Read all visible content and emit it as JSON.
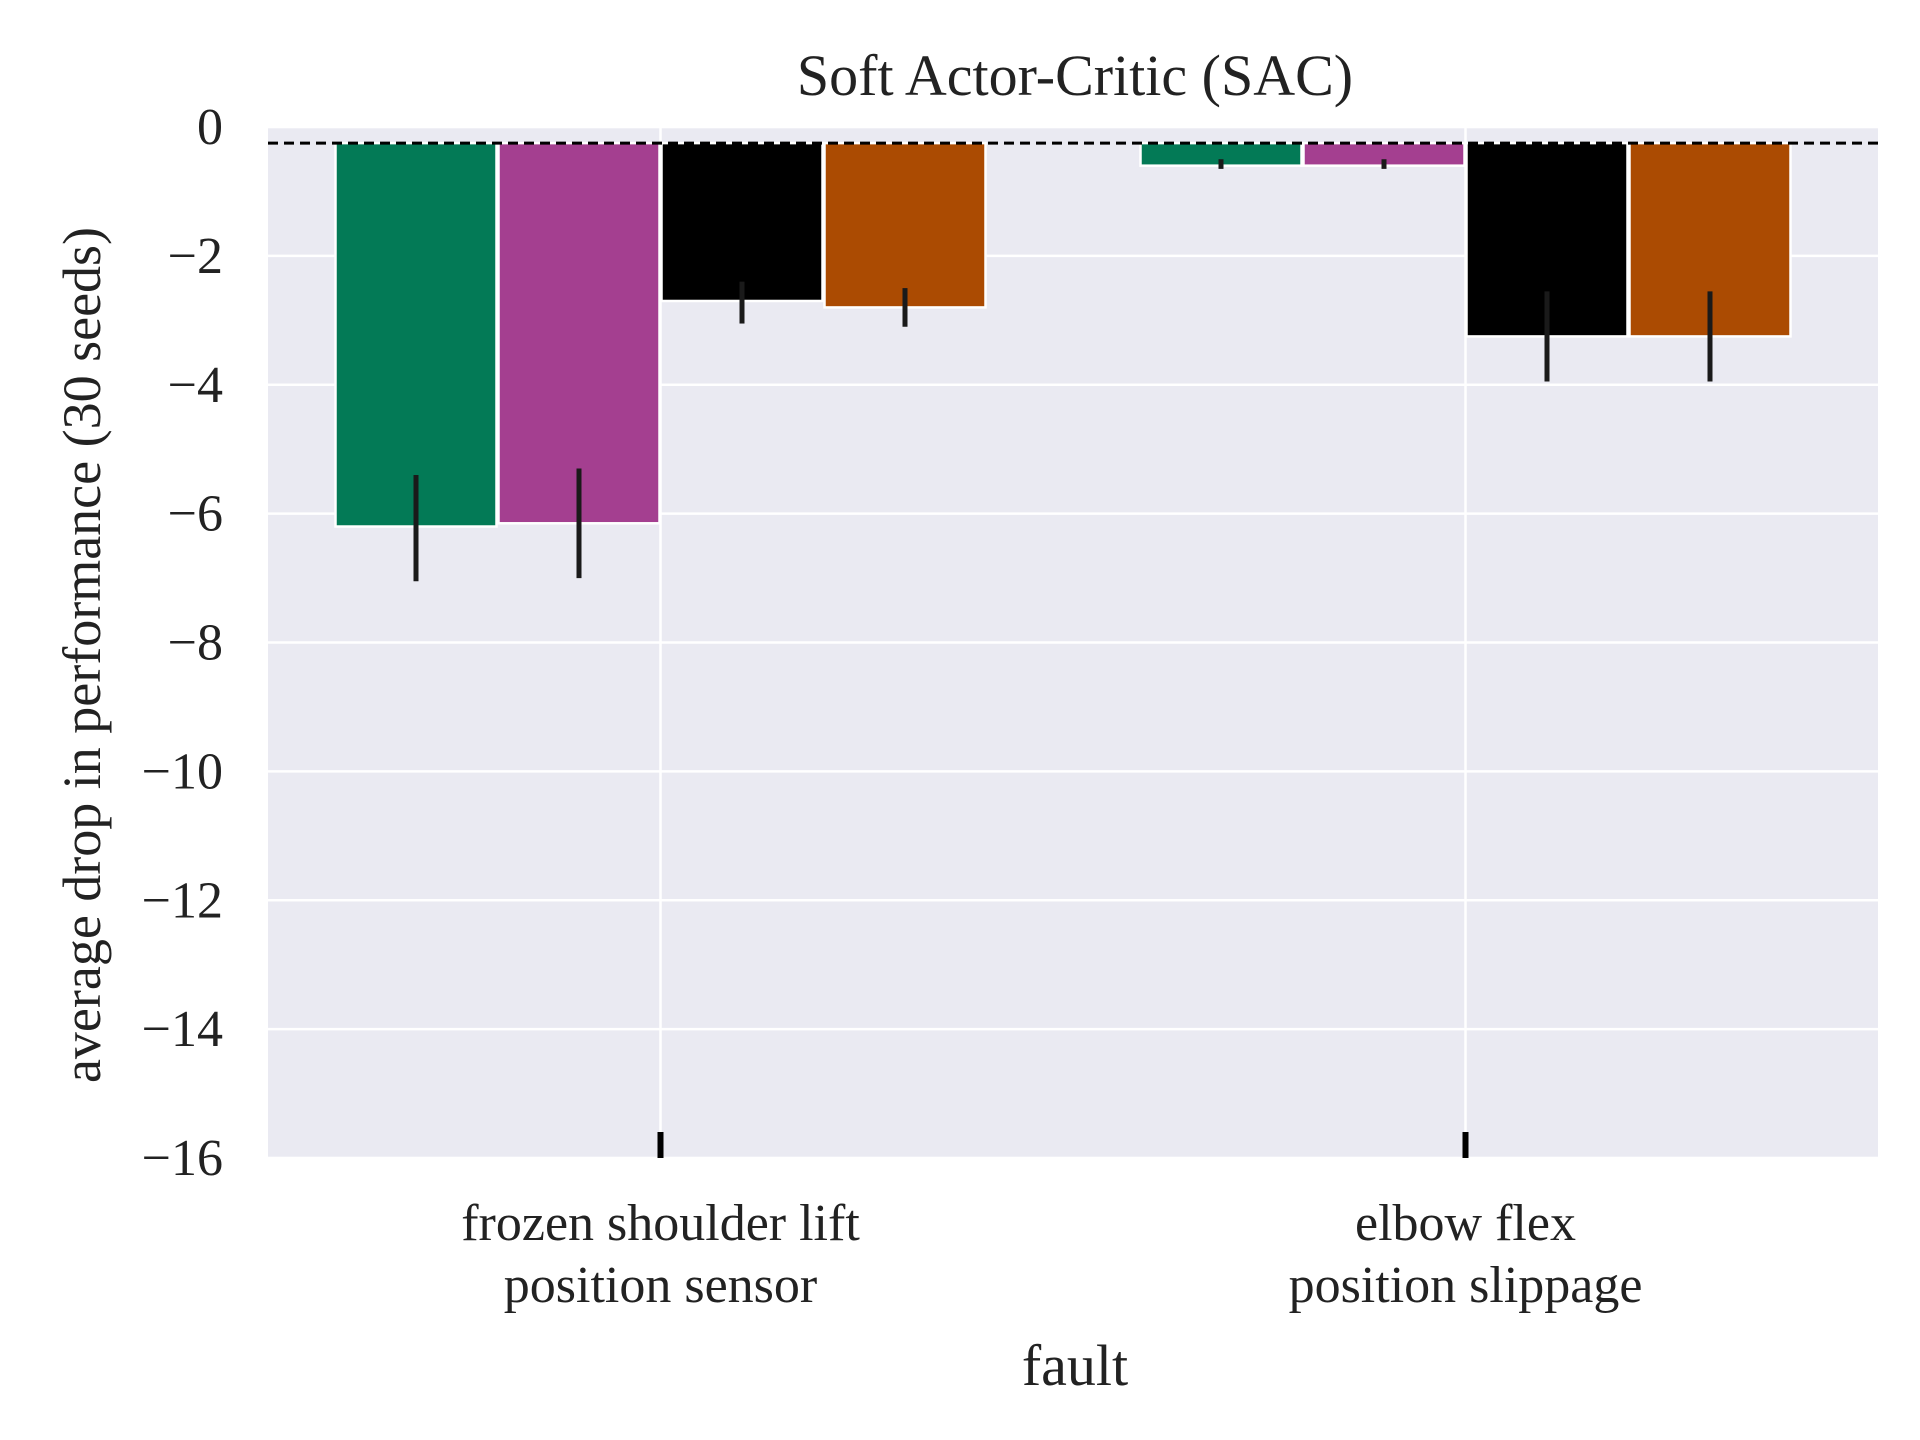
{
  "chart_data": {
    "type": "bar",
    "title": "Soft Actor-Critic (SAC)",
    "xlabel": "fault",
    "ylabel": "average drop in performance (30 seeds)",
    "ylim": [
      -16,
      0
    ],
    "yticks": [
      0,
      -2,
      -4,
      -6,
      -8,
      -10,
      -12,
      -14,
      -16
    ],
    "ytick_labels": [
      "0",
      "−2",
      "−4",
      "−6",
      "−8",
      "−10",
      "−12",
      "−14",
      "−16"
    ],
    "grid": true,
    "baseline": -0.25,
    "categories": [
      {
        "lines": [
          "frozen shoulder lift",
          "position sensor"
        ]
      },
      {
        "lines": [
          "elbow flex",
          "position slippage"
        ]
      }
    ],
    "series": [
      {
        "color": "#037a56",
        "values": [
          -6.2,
          -0.6
        ],
        "error": [
          [
            -5.4,
            -7.05
          ],
          [
            -0.5,
            -0.65
          ]
        ]
      },
      {
        "color": "#a43f90",
        "values": [
          -6.15,
          -0.6
        ],
        "error": [
          [
            -5.3,
            -7.0
          ],
          [
            -0.5,
            -0.65
          ]
        ]
      },
      {
        "color": "#000000",
        "values": [
          -2.7,
          -3.25
        ],
        "error": [
          [
            -2.4,
            -3.05
          ],
          [
            -2.55,
            -3.95
          ]
        ]
      },
      {
        "color": "#ab4b02",
        "values": [
          -2.8,
          -3.25
        ],
        "error": [
          [
            -2.5,
            -3.1
          ],
          [
            -2.55,
            -3.95
          ]
        ]
      }
    ],
    "colors": {
      "plot_background": "#eaeaf2",
      "grid": "#ffffff",
      "baseline": "#000000",
      "errorbar": "#1a1a1a"
    }
  }
}
